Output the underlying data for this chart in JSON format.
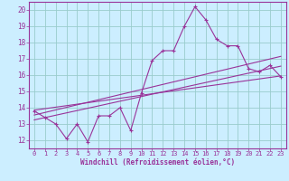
{
  "xlabel": "Windchill (Refroidissement éolien,°C)",
  "main_line_x": [
    0,
    1,
    2,
    3,
    4,
    5,
    6,
    7,
    8,
    9,
    10,
    11,
    12,
    13,
    14,
    15,
    16,
    17,
    18,
    19,
    20,
    21,
    22,
    23
  ],
  "main_line_y": [
    13.8,
    13.4,
    13.0,
    12.1,
    13.0,
    11.9,
    13.5,
    13.5,
    14.0,
    12.6,
    14.9,
    16.9,
    17.5,
    17.5,
    19.0,
    20.2,
    19.4,
    18.2,
    17.8,
    17.8,
    16.4,
    16.2,
    16.6,
    15.9
  ],
  "reg_line1_x": [
    0,
    23
  ],
  "reg_line1_y": [
    13.55,
    17.15
  ],
  "reg_line2_x": [
    0,
    23
  ],
  "reg_line2_y": [
    13.85,
    15.95
  ],
  "reg_line3_x": [
    0,
    23
  ],
  "reg_line3_y": [
    13.25,
    16.55
  ],
  "line_color": "#993399",
  "bg_color": "#cceeff",
  "grid_color": "#99cccc",
  "ylim": [
    11.5,
    20.5
  ],
  "xlim": [
    -0.5,
    23.5
  ],
  "yticks": [
    12,
    13,
    14,
    15,
    16,
    17,
    18,
    19,
    20
  ],
  "xticks": [
    0,
    1,
    2,
    3,
    4,
    5,
    6,
    7,
    8,
    9,
    10,
    11,
    12,
    13,
    14,
    15,
    16,
    17,
    18,
    19,
    20,
    21,
    22,
    23
  ]
}
